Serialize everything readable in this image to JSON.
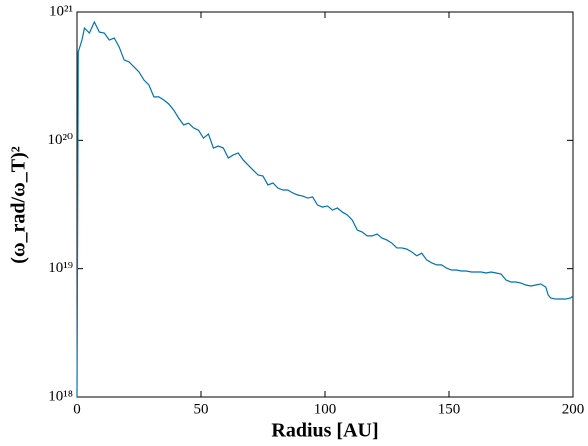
{
  "chart_data": {
    "type": "line",
    "xlabel": "Radius [AU]",
    "ylabel": "(ω_rad/ω_T)²",
    "x": [
      0,
      0.5,
      2,
      3,
      5,
      7,
      9,
      11,
      13,
      15,
      17,
      19,
      21,
      23,
      25,
      27,
      29,
      31,
      33,
      35,
      37,
      39,
      41,
      43,
      45,
      47,
      49,
      51,
      53,
      55,
      57,
      59,
      61,
      63,
      65,
      67,
      69,
      71,
      73,
      75,
      77,
      79,
      81,
      83,
      85,
      87,
      89,
      91,
      93,
      95,
      97,
      99,
      101,
      103,
      105,
      107,
      109,
      111,
      113,
      115,
      117,
      119,
      121,
      123,
      125,
      127,
      129,
      131,
      133,
      135,
      137,
      139,
      141,
      143,
      145,
      147,
      149,
      151,
      153,
      155,
      157,
      159,
      161,
      163,
      165,
      167,
      169,
      171,
      173,
      175,
      177,
      179,
      181,
      183,
      185,
      187,
      189,
      190,
      191,
      193,
      195,
      197,
      199,
      200
    ],
    "series": [
      {
        "color": "#0072b2",
        "values": [
          1e+18,
          4.88e+20,
          6.05e+20,
          7.5e+20,
          6.86e+20,
          8.36e+20,
          6.98e+20,
          6.86e+20,
          6.05e+20,
          6.27e+20,
          5.34e+20,
          4.23e+20,
          4.08e+20,
          3.73e+20,
          3.41e+20,
          2.95e+20,
          2.7e+20,
          2.18e+20,
          2.18e+20,
          2.06e+20,
          1.92e+20,
          1.72e+20,
          1.49e+20,
          1.32e+20,
          1.36e+20,
          1.25e+20,
          1.2e+20,
          1.04e+20,
          1.12e+20,
          8.71e+19,
          9.03e+19,
          8.71e+19,
          7.28e+19,
          7.69e+19,
          7.97e+19,
          7.03e+19,
          6.42e+19,
          5.87e+19,
          5.37e+19,
          5.27e+19,
          4.49e+19,
          4.65e+19,
          4.25e+19,
          4.1e+19,
          4.1e+19,
          3.89e+19,
          3.75e+19,
          3.68e+19,
          3.55e+19,
          3.62e+19,
          3.13e+19,
          3.02e+19,
          3.08e+19,
          2.86e+19,
          2.97e+19,
          2.76e+19,
          2.62e+19,
          2.39e+19,
          2e+19,
          1.93e+19,
          1.8e+19,
          1.8e+19,
          1.86e+19,
          1.73e+19,
          1.67e+19,
          1.58e+19,
          1.45e+19,
          1.45e+19,
          1.42e+19,
          1.35e+19,
          1.26e+19,
          1.32e+19,
          1.17e+19,
          1.11e+19,
          1.07e+19,
          1.07e+19,
          1.01e+19,
          9.76e+18,
          9.76e+18,
          9.59e+18,
          9.59e+18,
          9.42e+18,
          9.42e+18,
          9.42e+18,
          9.25e+18,
          9.42e+18,
          9.25e+18,
          9.08e+18,
          8.16e+18,
          7.87e+18,
          7.87e+18,
          7.73e+18,
          7.46e+18,
          7.33e+18,
          7.46e+18,
          7.6e+18,
          7.2e+18,
          6.24e+18,
          5.91e+18,
          5.8e+18,
          5.8e+18,
          5.8e+18,
          5.91e+18,
          6.12e+18
        ]
      }
    ],
    "xlim": [
      0,
      200
    ],
    "xticks": [
      0,
      50,
      100,
      150,
      200
    ],
    "ylim": [
      1e+18,
      1e+21
    ],
    "ylog": true,
    "yticks": [
      {
        "value": 1e+18,
        "label": "10¹⁸"
      },
      {
        "value": 1e+19,
        "label": "10¹⁹"
      },
      {
        "value": 1e+20,
        "label": "10²⁰"
      },
      {
        "value": 1e+21,
        "label": "10²¹"
      }
    ],
    "grid": false
  }
}
